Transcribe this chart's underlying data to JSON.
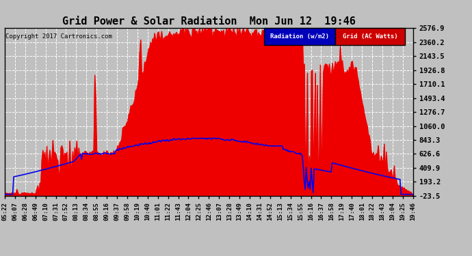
{
  "title": "Grid Power & Solar Radiation  Mon Jun 12  19:46",
  "copyright": "Copyright 2017 Cartronics.com",
  "yticks": [
    2576.9,
    2360.2,
    2143.5,
    1926.8,
    1710.1,
    1493.4,
    1276.7,
    1060.0,
    843.3,
    626.6,
    409.9,
    193.2,
    -23.5
  ],
  "ymin": -23.5,
  "ymax": 2576.9,
  "legend_radiation_label": "Radiation (w/m2)",
  "legend_grid_label": "Grid (AC Watts)",
  "legend_radiation_bg": "#0000bb",
  "legend_grid_bg": "#cc0000",
  "bg_color": "#c0c0c0",
  "plot_bg_color": "#c0c0c0",
  "grid_color": "#ffffff",
  "radiation_color": "#0000ee",
  "solar_fill_color": "#ee0000",
  "xtick_labels": [
    "05:22",
    "06:07",
    "06:28",
    "06:49",
    "07:10",
    "07:31",
    "07:52",
    "08:13",
    "08:34",
    "08:55",
    "09:16",
    "09:37",
    "09:58",
    "10:19",
    "10:40",
    "11:01",
    "11:22",
    "11:43",
    "12:04",
    "12:25",
    "12:46",
    "13:07",
    "13:28",
    "13:49",
    "14:10",
    "14:31",
    "14:52",
    "15:13",
    "15:34",
    "15:55",
    "16:16",
    "16:37",
    "16:58",
    "17:19",
    "17:40",
    "18:01",
    "18:22",
    "18:43",
    "19:04",
    "19:25",
    "19:46"
  ],
  "n_points": 410
}
